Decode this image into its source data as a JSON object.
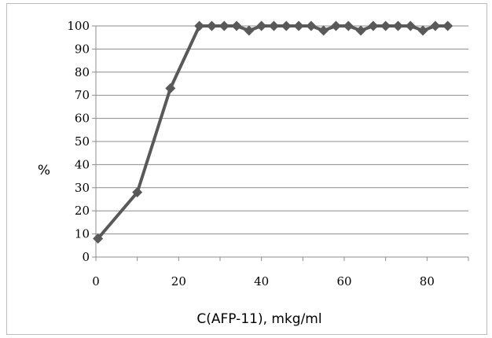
{
  "chart_data": {
    "type": "line",
    "title": "",
    "xlabel": "C(AFP-11), mkg/ml",
    "ylabel": "%",
    "xlim": [
      0,
      90
    ],
    "ylim": [
      0,
      100
    ],
    "x_ticks": [
      0,
      20,
      40,
      60,
      80
    ],
    "y_ticks": [
      0,
      10,
      20,
      30,
      40,
      50,
      60,
      70,
      80,
      90,
      100
    ],
    "grid": "horizontal",
    "legend": "none",
    "marker": "diamond",
    "color": "#595959",
    "series": [
      {
        "x": [
          0.5,
          10,
          18,
          25,
          28,
          31,
          34,
          37,
          40,
          43,
          46,
          49,
          52,
          55,
          58,
          61,
          64,
          67,
          70,
          73,
          76,
          79,
          82,
          85
        ],
        "y": [
          8,
          28,
          73,
          100,
          100,
          100,
          100,
          98,
          100,
          100,
          100,
          100,
          100,
          98,
          100,
          100,
          98,
          100,
          100,
          100,
          100,
          98,
          100,
          100
        ]
      }
    ]
  }
}
